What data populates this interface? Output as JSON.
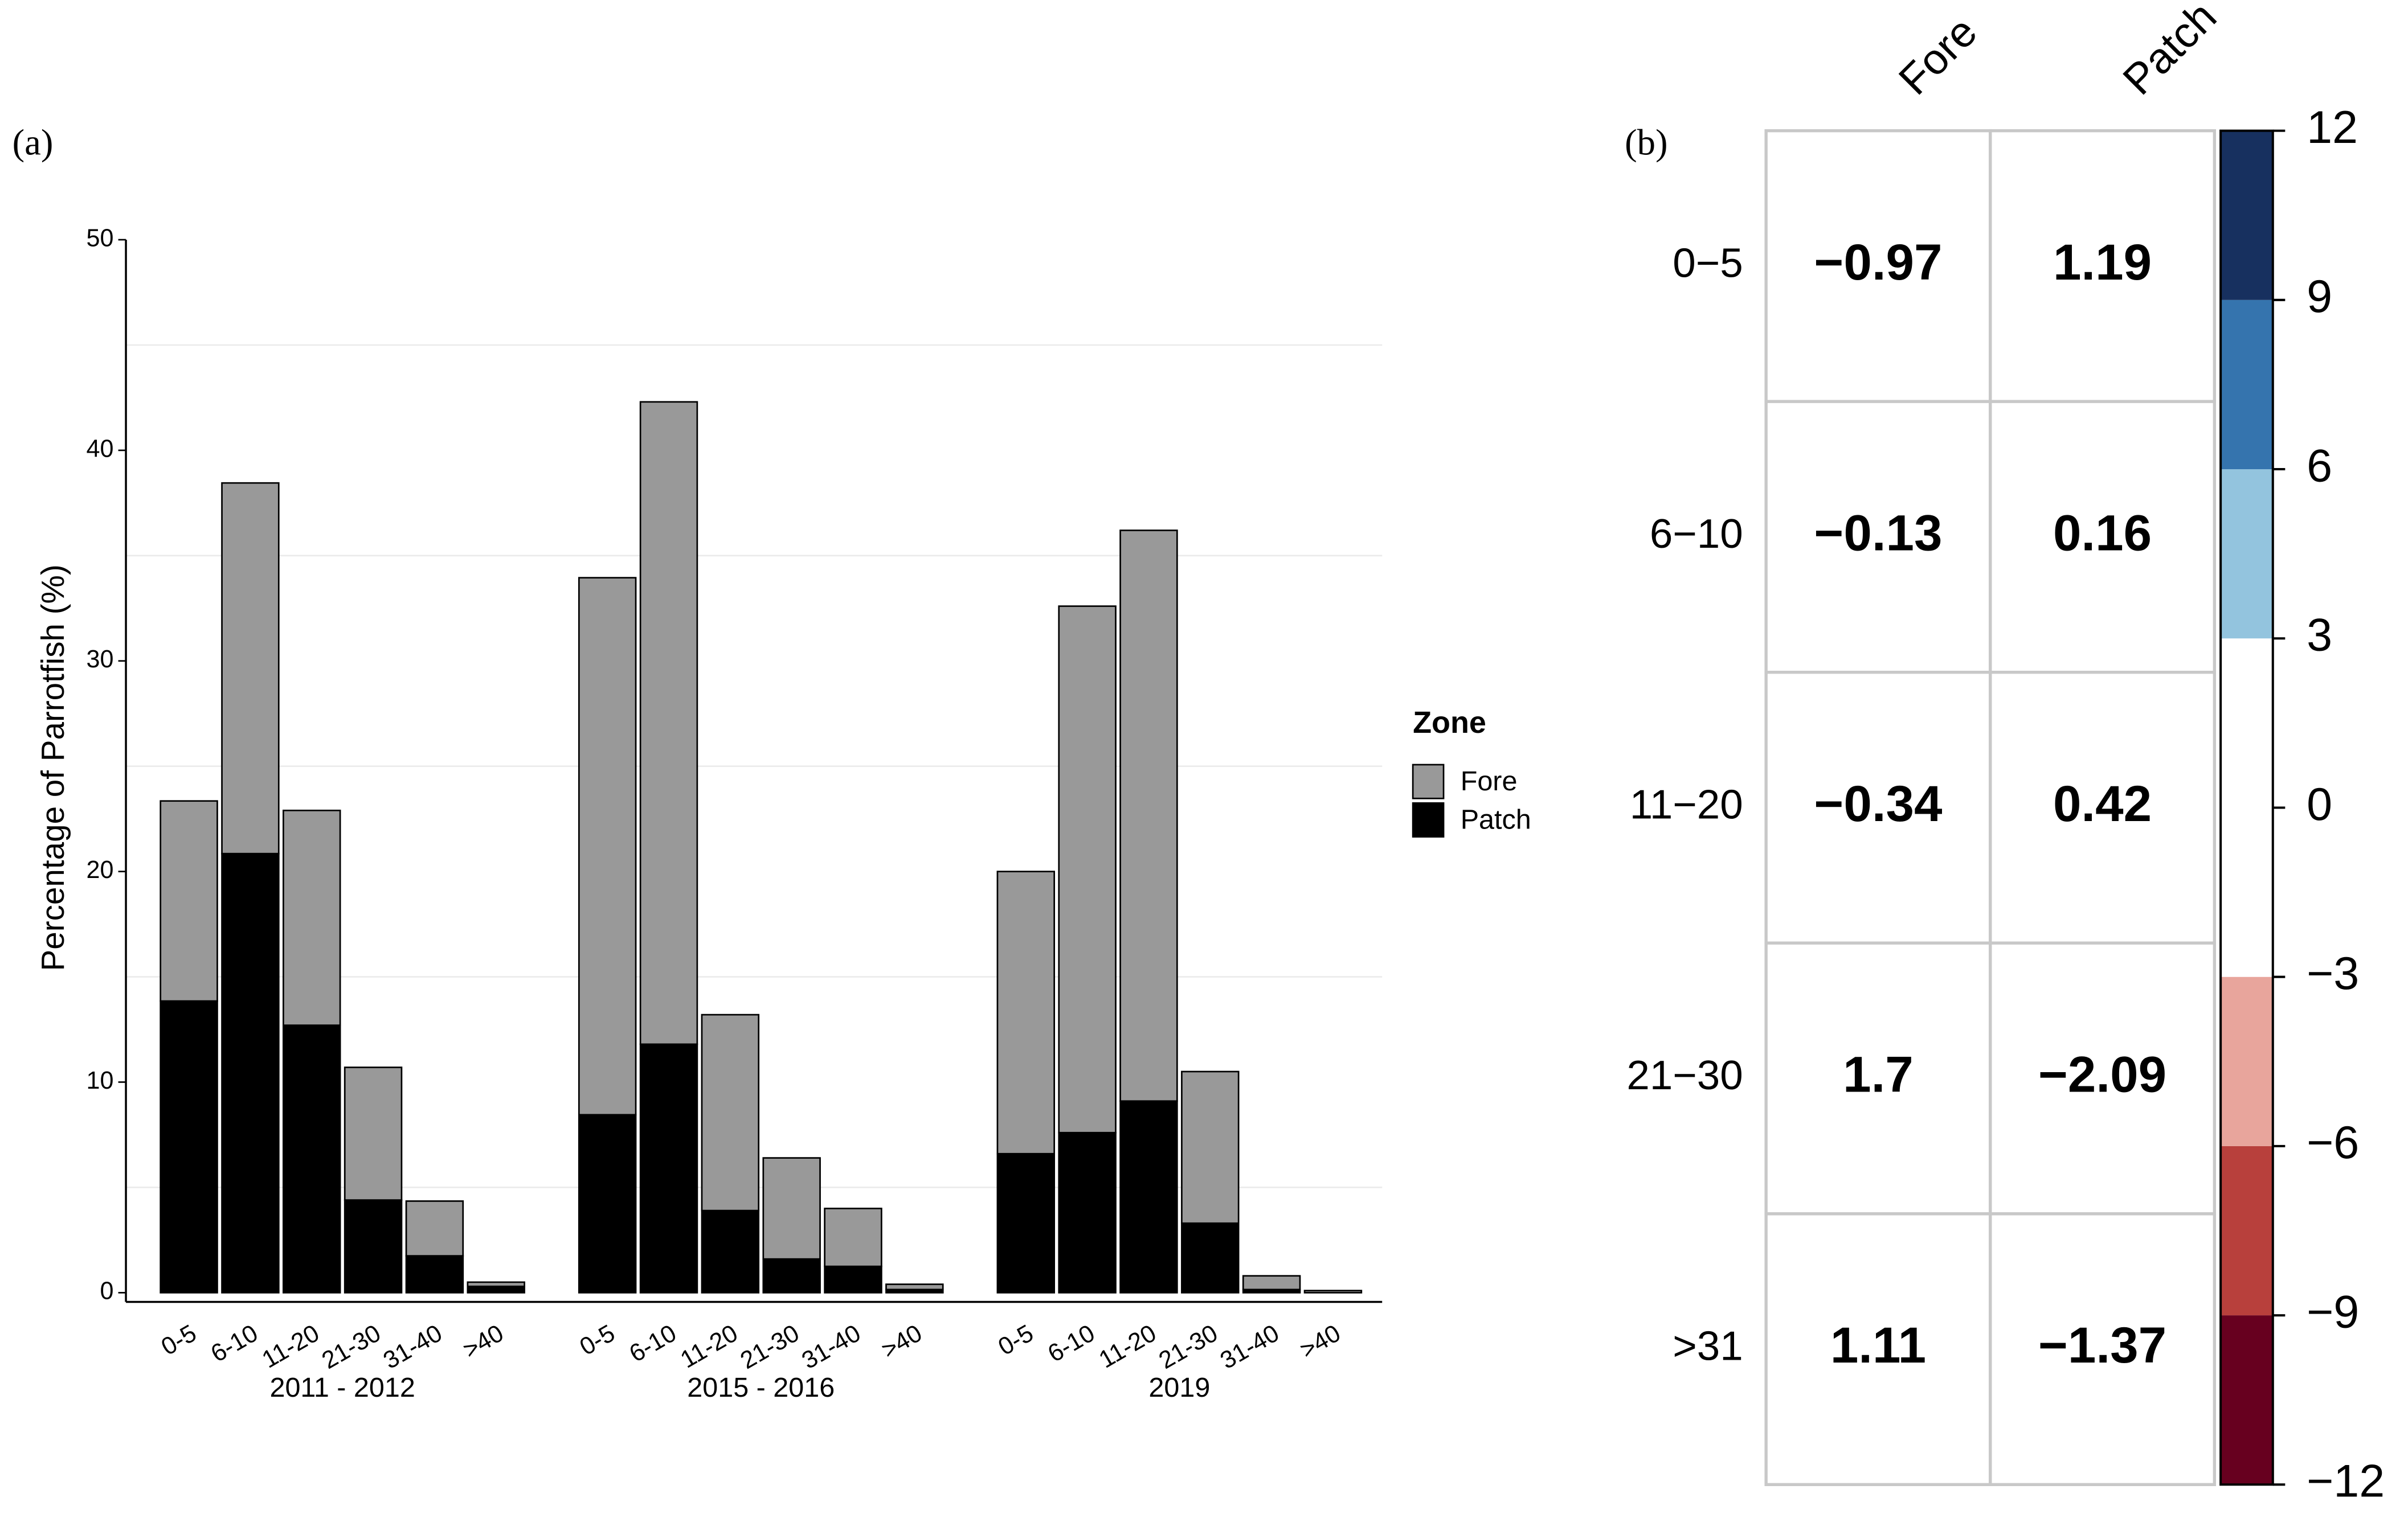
{
  "chart_data": [
    {
      "type": "bar",
      "stacked": true,
      "panel_label": "(a)",
      "ylabel": "Percentage of Parrotfish (%)",
      "groups": [
        "2011 - 2012",
        "2015 - 2016",
        "2019"
      ],
      "categories": [
        "0-5",
        "6-10",
        "11-20",
        "21-30",
        "31-40",
        ">40"
      ],
      "legend_title": "Zone",
      "series": [
        {
          "name": "Fore",
          "color": "#999999",
          "values": [
            [
              9.5,
              17.6,
              10.2,
              6.3,
              2.6,
              0.2
            ],
            [
              25.5,
              30.5,
              9.3,
              4.8,
              2.75,
              0.25
            ],
            [
              13.4,
              25.0,
              27.1,
              7.2,
              0.65,
              0.1
            ]
          ]
        },
        {
          "name": "Patch",
          "color": "#000000",
          "values": [
            [
              13.85,
              20.85,
              12.7,
              4.4,
              1.75,
              0.3
            ],
            [
              8.45,
              11.8,
              3.9,
              1.6,
              1.25,
              0.15
            ],
            [
              6.6,
              7.6,
              9.1,
              3.3,
              0.15,
              0
            ]
          ]
        }
      ],
      "ylim": [
        0,
        50
      ],
      "yticks": [
        0,
        10,
        20,
        30,
        40,
        50
      ],
      "minor_grid": [
        5,
        15,
        25,
        35,
        45
      ]
    },
    {
      "type": "heatmap",
      "panel_label": "(b)",
      "rows": [
        "0−5",
        "6−10",
        "11−20",
        "21−30",
        ">31"
      ],
      "columns": [
        "Fore",
        "Patch"
      ],
      "values": [
        [
          -0.97,
          1.19
        ],
        [
          -0.13,
          0.16
        ],
        [
          -0.34,
          0.42
        ],
        [
          1.7,
          -2.09
        ],
        [
          1.11,
          -1.37
        ]
      ],
      "value_labels": [
        [
          "−0.97",
          "1.19"
        ],
        [
          "−0.13",
          "0.16"
        ],
        [
          "−0.34",
          "0.42"
        ],
        [
          "1.7",
          "−2.09"
        ],
        [
          "1.11",
          "−1.37"
        ]
      ],
      "colorbar": {
        "lim": [
          -12,
          12
        ],
        "ticks": [
          {
            "value": -12,
            "label": "−12"
          },
          {
            "value": -9,
            "label": "−9"
          },
          {
            "value": -6,
            "label": "−6"
          },
          {
            "value": -3,
            "label": "−3"
          },
          0,
          3,
          6,
          9,
          12
        ],
        "bins": [
          -12,
          -9,
          -6,
          -3,
          3,
          6,
          9,
          12
        ],
        "colors": [
          "#67001f",
          "#b8403c",
          "#e8a59c",
          "#ffffff",
          "#93c4de",
          "#3574ae",
          "#17305f"
        ]
      }
    }
  ]
}
